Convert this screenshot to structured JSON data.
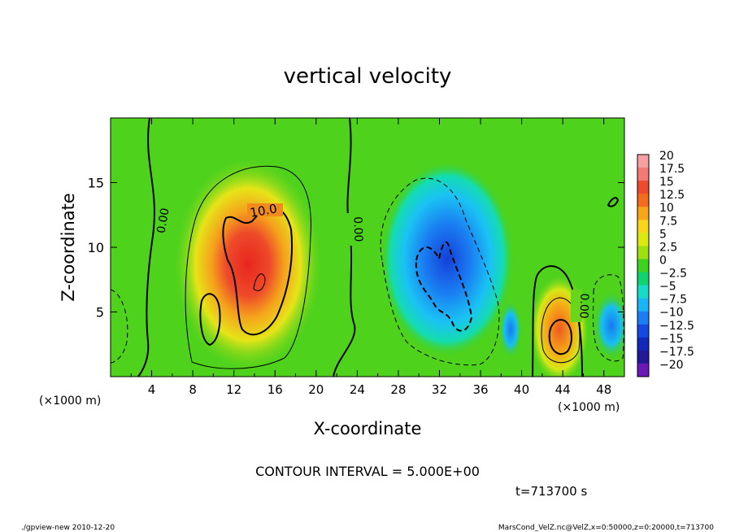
{
  "chart_data": {
    "type": "heatmap",
    "title": "vertical velocity",
    "xlabel": "X-coordinate",
    "ylabel": "Z-coordinate",
    "x_unit_left": "(×1000 m)",
    "x_unit_right": "(×1000 m)",
    "xlim": [
      0,
      50
    ],
    "ylim": [
      0,
      20
    ],
    "x_ticks": [
      4,
      8,
      12,
      16,
      20,
      24,
      28,
      32,
      36,
      40,
      44,
      48
    ],
    "x_tick_labels": [
      "4",
      "8",
      "12",
      "16",
      "20",
      "24",
      "28",
      "32",
      "36",
      "40",
      "44",
      "48"
    ],
    "y_ticks": [
      5,
      10,
      15
    ],
    "y_tick_labels": [
      "5",
      "10",
      "15"
    ],
    "colorbar": {
      "levels": [
        20,
        17.5,
        15,
        12.5,
        10,
        7.5,
        5,
        2.5,
        0,
        -2.5,
        -5,
        -7.5,
        -10,
        -12.5,
        -15,
        -17.5,
        -20
      ],
      "labels": [
        "20",
        "17.5",
        "15",
        "12.5",
        "10",
        "7.5",
        "5",
        "2.5",
        "0",
        "−2.5",
        "−5",
        "−7.5",
        "−10",
        "−12.5",
        "−15",
        "−17.5",
        "−20"
      ],
      "colors": [
        "#f6a0a4",
        "#f27a72",
        "#ee4a2c",
        "#f26c1c",
        "#f6a616",
        "#f8d41a",
        "#d8ea10",
        "#9ee00e",
        "#3cd21e",
        "#0ed470",
        "#14dcc6",
        "#18b6f6",
        "#1a7ef4",
        "#1448e0",
        "#1228b8",
        "#24189a",
        "#6a18b8"
      ]
    },
    "contour_labels": [
      {
        "text": "0.00",
        "x": 6.2,
        "z": 12.0
      },
      {
        "text": "10.0",
        "x": 14.1,
        "z": 12.3
      },
      {
        "text": "0.00",
        "x": 23.3,
        "z": 11.5
      },
      {
        "text": "0.00",
        "x": 45.6,
        "z": 5.8
      }
    ],
    "contour_interval_text": "CONTOUR INTERVAL = 5.000E+00",
    "time_text": "t=713700  s"
  },
  "footer": {
    "left": "./gpview-new  2010-12-20",
    "right": "MarsCond_VelZ.nc@VelZ,x=0:50000,z=0:20000,t=713700"
  }
}
